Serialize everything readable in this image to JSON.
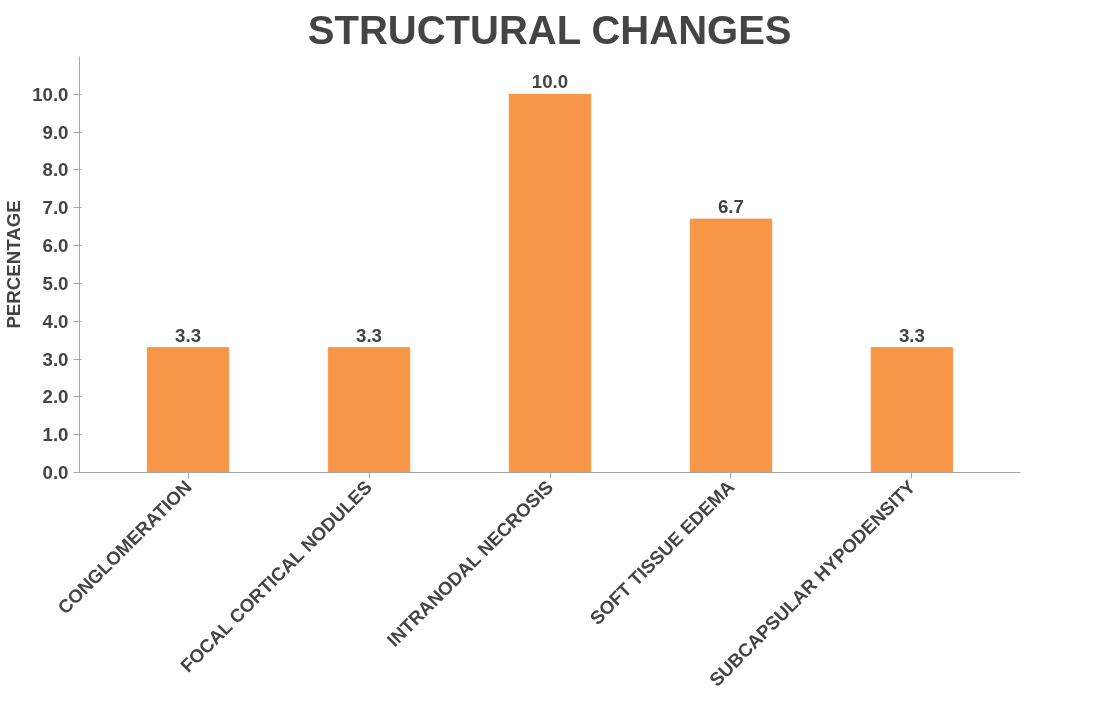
{
  "chart_data": {
    "type": "bar",
    "title": "STRUCTURAL CHANGES",
    "ylabel": "PERCENTAGE",
    "categories": [
      "CONGLOMERATION",
      "FOCAL CORTICAL NODULES",
      "INTRANODAL NECROSIS",
      "SOFT TISSUE EDEMA",
      "SUBCAPSULAR HYPODENSITY"
    ],
    "values": [
      3.3,
      3.3,
      10.0,
      6.7,
      3.3
    ],
    "value_labels": [
      "3.3",
      "3.3",
      "10.0",
      "6.7",
      "3.3"
    ],
    "color": "#f79646",
    "ylim": [
      0,
      11
    ],
    "yticks": [
      {
        "value": 0,
        "label": "0.0"
      },
      {
        "value": 1,
        "label": "1.0"
      },
      {
        "value": 2,
        "label": "2.0"
      },
      {
        "value": 3,
        "label": "3.0"
      },
      {
        "value": 4,
        "label": "4.0"
      },
      {
        "value": 5,
        "label": "5.0"
      },
      {
        "value": 6,
        "label": "6.0"
      },
      {
        "value": 7,
        "label": "7.0"
      },
      {
        "value": 8,
        "label": "8.0"
      },
      {
        "value": 9,
        "label": "9.0"
      },
      {
        "value": 10,
        "label": "10.0"
      }
    ],
    "grid": false
  }
}
